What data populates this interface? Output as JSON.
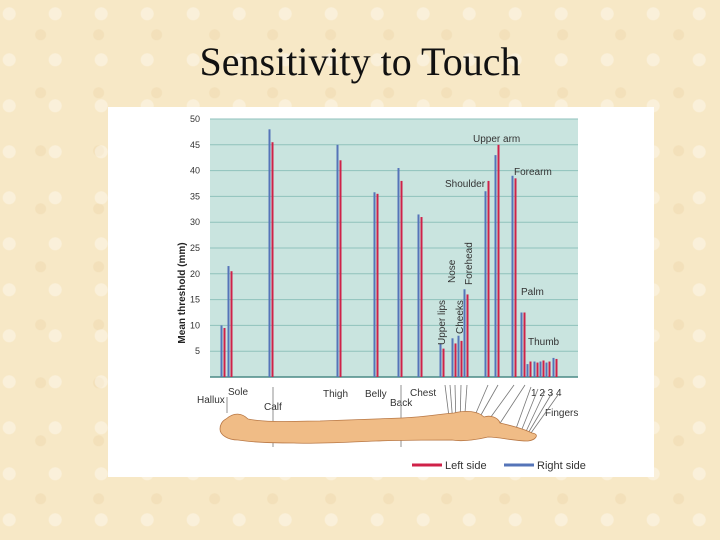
{
  "slide_title": "Sensitivity to Touch",
  "colors": {
    "left": "#cf2148",
    "right": "#5574b8",
    "plot_bg": "#c9e4df",
    "grid": "#8fc2bc",
    "body": "#f0bc86"
  },
  "chart_data": {
    "type": "bar",
    "ylabel": "Mean threshold (mm)",
    "ylim": [
      0,
      50
    ],
    "yticks": [
      5,
      10,
      15,
      20,
      25,
      30,
      35,
      40,
      45,
      50
    ],
    "series": [
      {
        "name": "Left side"
      },
      {
        "name": "Right side"
      }
    ],
    "categories": [
      "Hallux",
      "Sole",
      "Calf",
      "Thigh",
      "Belly",
      "Back",
      "Chest",
      "Upper lips",
      "Cheeks",
      "Nose",
      "Forehead",
      "Shoulder",
      "Upper arm",
      "Forearm",
      "Palm",
      "Thumb",
      "1",
      "2",
      "3",
      "4"
    ],
    "left_values": [
      9.5,
      20.5,
      45.5,
      42,
      35.5,
      38,
      31,
      5.5,
      6.5,
      7,
      16,
      38,
      45,
      38.5,
      12.5,
      3,
      2.8,
      3.2,
      3,
      3.5
    ],
    "right_values": [
      10,
      21.5,
      48,
      45,
      35.8,
      40.5,
      31.5,
      6.5,
      7.5,
      8,
      17,
      36,
      43,
      39,
      12.5,
      2.5,
      3,
      3,
      2.8,
      3.7
    ],
    "axis_labels": {
      "hallux": "Hallux",
      "sole": "Sole",
      "calf": "Calf",
      "thigh": "Thigh",
      "belly": "Belly",
      "back": "Back",
      "chest": "Chest",
      "upper_lips": "Upper lips",
      "cheeks": "Cheeks",
      "nose": "Nose",
      "forehead": "Forehead",
      "shoulder": "Shoulder",
      "upper_arm": "Upper arm",
      "forearm": "Forearm",
      "palm": "Palm",
      "thumb": "Thumb",
      "fingers_numbers": "1 2 3 4",
      "fingers": "Fingers"
    },
    "legend": [
      "Left side",
      "Right side"
    ],
    "legend_placement": "bottom-right"
  }
}
